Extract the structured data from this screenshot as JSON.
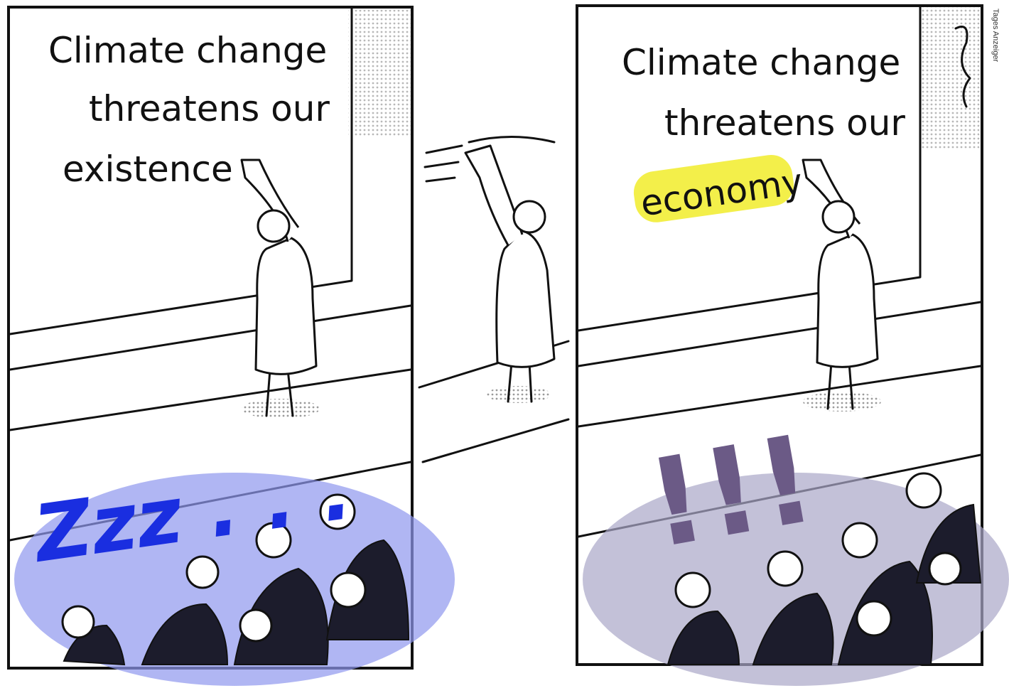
{
  "panels": [
    {
      "board": [
        "Climate change",
        "threatens our",
        "existence"
      ],
      "reaction": "Zzz . . ."
    },
    {
      "board": [
        "Climate change",
        "threatens our",
        "economy"
      ],
      "reaction": "!!!"
    }
  ],
  "credit": "Tages Anzeiger"
}
